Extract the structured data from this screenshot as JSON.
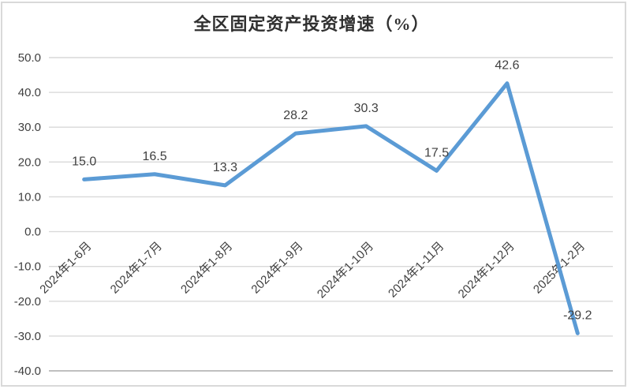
{
  "window": {
    "background": "#ffffff",
    "frame_border_color": "#d9d9d9"
  },
  "chart_data": {
    "type": "line",
    "title": "全区固定资产投资增速（%）",
    "categories": [
      "2024年1-6月",
      "2024年1-7月",
      "2024年1-8月",
      "2024年1-9月",
      "2024年1-10月",
      "2024年1-11月",
      "2024年1-12月",
      "2025年1-2月"
    ],
    "values": [
      15.0,
      16.5,
      13.3,
      28.2,
      30.3,
      17.5,
      42.6,
      -29.2
    ],
    "data_labels": [
      "15.0",
      "16.5",
      "13.3",
      "28.2",
      "30.3",
      "17.5",
      "42.6",
      "-29.2"
    ],
    "xlabel": "",
    "ylabel": "",
    "ylim": [
      -40,
      50
    ],
    "y_tick_step": 10,
    "y_tick_labels": [
      "50.0",
      "40.0",
      "30.0",
      "20.0",
      "10.0",
      "0.0",
      "-10.0",
      "-20.0",
      "-30.0",
      "-40.0"
    ],
    "x_label_rotation_deg": 45,
    "grid": true,
    "legend_position": "none",
    "line_color": "#5B9BD5",
    "gridline_color": "#D9D9D9",
    "bottom_gridline_color": "#BFBFBF",
    "axis_label_color": "#404040",
    "data_label_color": "#404040",
    "title_color": "#303030"
  }
}
